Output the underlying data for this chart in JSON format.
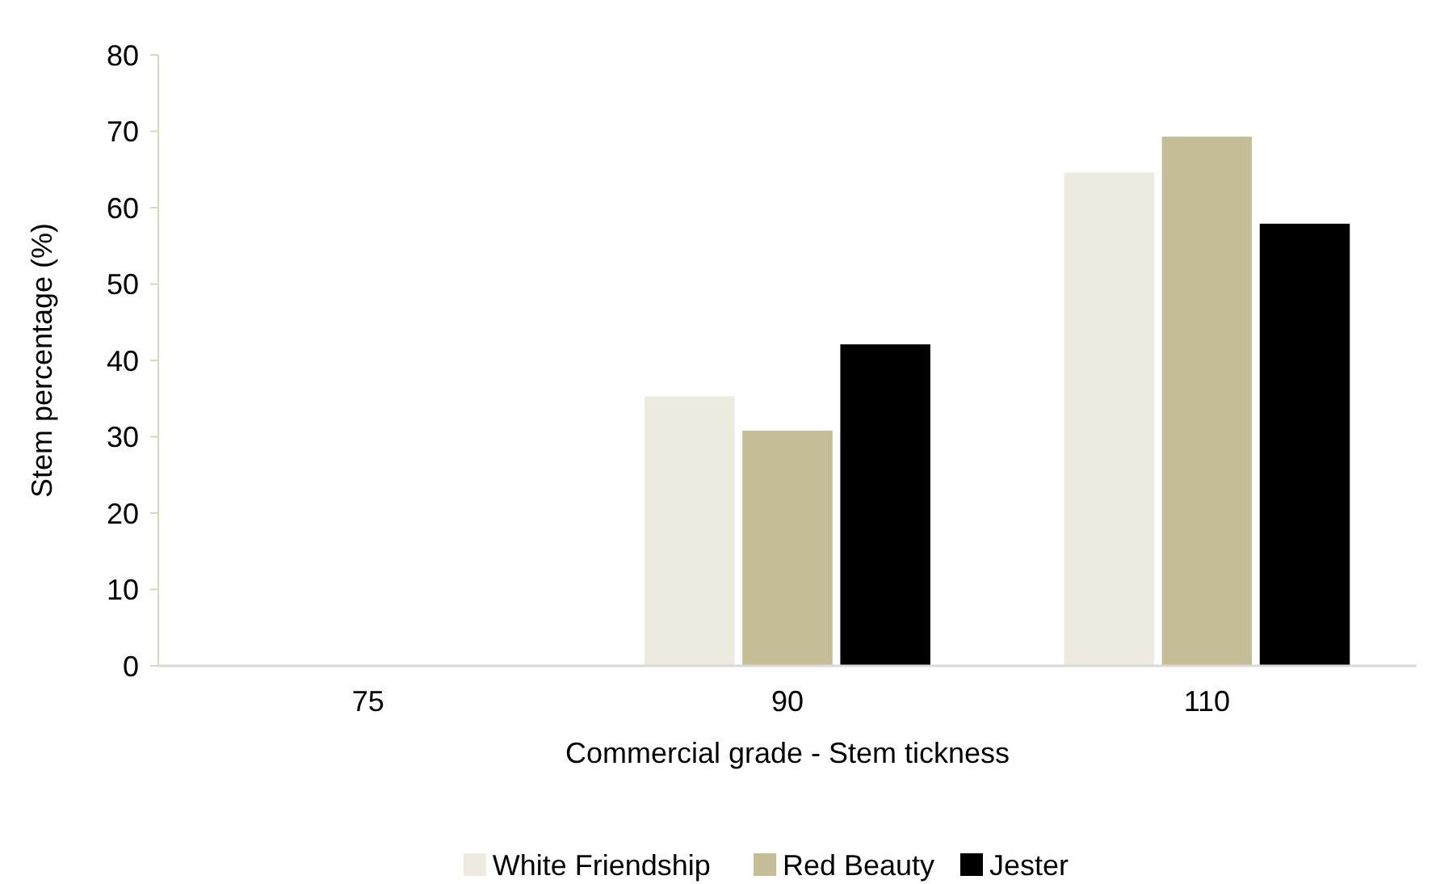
{
  "chart_data": {
    "type": "bar",
    "xlabel": "Commercial grade - Stem tickness",
    "ylabel": "Stem percentage (%)",
    "categories": [
      "75",
      "90",
      "110"
    ],
    "series": [
      {
        "name": "White Friendship",
        "color": "#edeadf",
        "values": [
          0,
          35.3,
          64.6
        ]
      },
      {
        "name": "Red Beauty",
        "color": "#c5bd98",
        "values": [
          0,
          30.8,
          69.3
        ]
      },
      {
        "name": "Jester",
        "color": "#000000",
        "values": [
          0,
          42.1,
          57.9
        ]
      }
    ],
    "ylim": [
      0,
      80
    ],
    "yticks": [
      0,
      10,
      20,
      30,
      40,
      50,
      60,
      70,
      80
    ],
    "grid": false,
    "legend": "bottom"
  }
}
